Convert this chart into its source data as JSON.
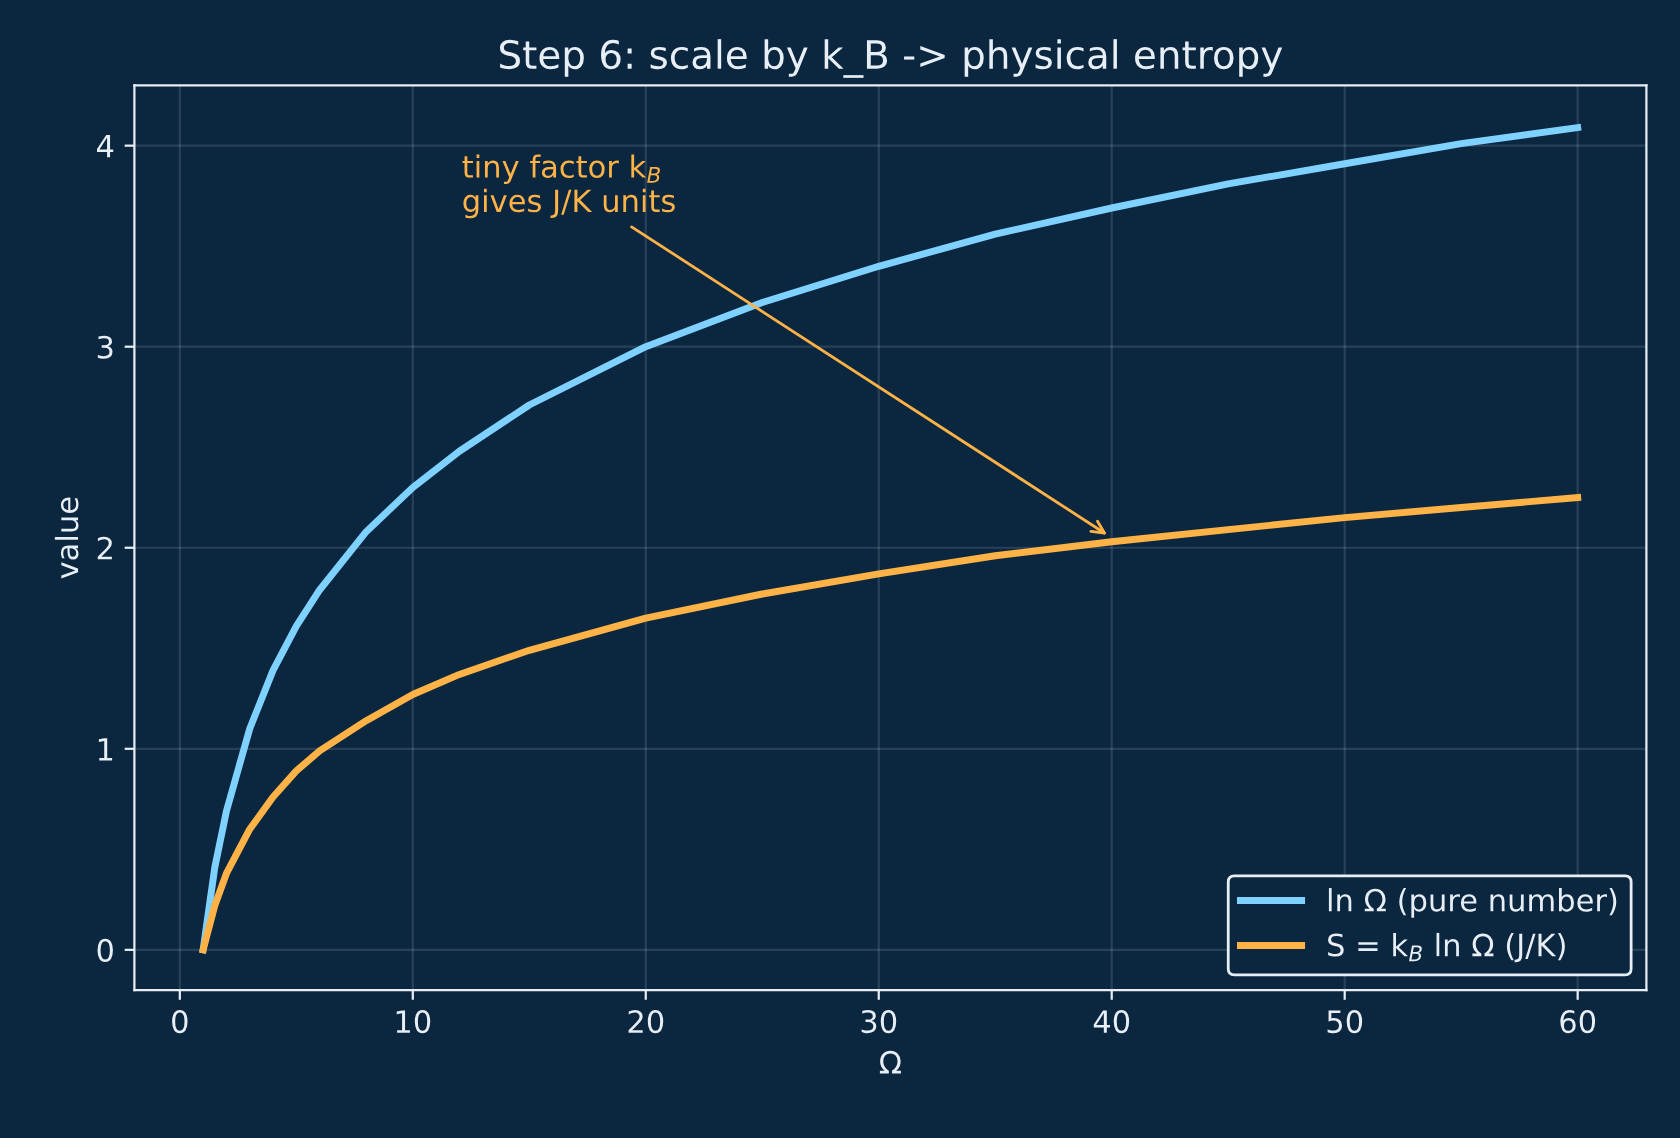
{
  "chart_data": {
    "type": "line",
    "title": "Step 6: scale by k_B -> physical entropy",
    "xlabel": "Ω",
    "ylabel": "value",
    "x": [
      1,
      1.5,
      2,
      3,
      4,
      5,
      6,
      8,
      10,
      12,
      15,
      20,
      25,
      30,
      35,
      40,
      45,
      50,
      55,
      60
    ],
    "series": [
      {
        "name": "ln Ω (pure number)",
        "color": "#7fd1ff",
        "values": [
          0,
          0.41,
          0.69,
          1.1,
          1.39,
          1.61,
          1.79,
          2.08,
          2.3,
          2.48,
          2.71,
          3.0,
          3.22,
          3.4,
          3.56,
          3.69,
          3.81,
          3.91,
          4.01,
          4.09
        ]
      },
      {
        "name": "S = k$_{B}$ ln Ω (J/K)",
        "color": "#ffb347",
        "values": [
          0,
          0.22,
          0.38,
          0.6,
          0.76,
          0.89,
          0.99,
          1.14,
          1.27,
          1.37,
          1.49,
          1.65,
          1.77,
          1.87,
          1.96,
          2.03,
          2.09,
          2.15,
          2.2,
          2.25
        ]
      }
    ],
    "xlim": [
      -1.95,
      62.95
    ],
    "xticks": [
      0,
      10,
      20,
      30,
      40,
      50,
      60
    ],
    "ylim": [
      -0.2,
      4.3
    ],
    "yticks": [
      0,
      1,
      2,
      3,
      4
    ],
    "annotations": [
      {
        "text": "tiny factor k$_{B}$\ngives J/K units",
        "x": 40,
        "y": 2.05
      }
    ],
    "grid": true,
    "legend": "bottom right",
    "marker": "none",
    "line_style": "solid"
  }
}
